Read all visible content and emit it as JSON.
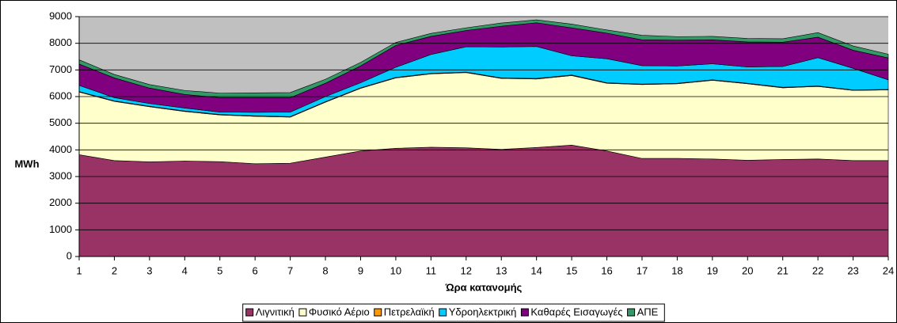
{
  "chart_data": {
    "type": "stacked-area",
    "y_label": "MWh",
    "x_label": "Ώρα κατανομής",
    "x": [
      1,
      2,
      3,
      4,
      5,
      6,
      7,
      8,
      9,
      10,
      11,
      12,
      13,
      14,
      15,
      16,
      17,
      18,
      19,
      20,
      21,
      22,
      23,
      24
    ],
    "xlim": [
      1,
      24
    ],
    "xticks": [
      1,
      2,
      3,
      4,
      5,
      6,
      7,
      8,
      9,
      10,
      11,
      12,
      13,
      14,
      15,
      16,
      17,
      18,
      19,
      20,
      21,
      22,
      23,
      24
    ],
    "ylim": [
      0,
      9000
    ],
    "yticks": [
      0,
      1000,
      2000,
      3000,
      4000,
      5000,
      6000,
      7000,
      8000,
      9000
    ],
    "grid": true,
    "legend": "bottom",
    "series": [
      {
        "name": "Λιγνιτική",
        "color": "#993366",
        "values": [
          3820,
          3600,
          3550,
          3580,
          3560,
          3480,
          3500,
          3730,
          3960,
          4060,
          4100,
          4080,
          4020,
          4090,
          4180,
          3960,
          3680,
          3680,
          3660,
          3610,
          3640,
          3660,
          3600,
          3600
        ]
      },
      {
        "name": "Φυσικό Αέριο",
        "color": "#FFFFCC",
        "values": [
          2350,
          2220,
          2070,
          1860,
          1750,
          1780,
          1730,
          2060,
          2350,
          2640,
          2750,
          2820,
          2660,
          2570,
          2610,
          2540,
          2770,
          2800,
          2950,
          2870,
          2690,
          2720,
          2630,
          2650
        ]
      },
      {
        "name": "Πετρελαϊκή",
        "color": "#FF9900",
        "values": [
          20,
          20,
          20,
          20,
          20,
          20,
          20,
          20,
          20,
          20,
          20,
          20,
          20,
          20,
          20,
          20,
          20,
          20,
          20,
          20,
          20,
          20,
          20,
          20
        ]
      },
      {
        "name": "Υδροηλεκτρική",
        "color": "#00CCFF",
        "values": [
          230,
          120,
          100,
          110,
          90,
          130,
          170,
          190,
          190,
          380,
          710,
          950,
          1160,
          1200,
          720,
          900,
          690,
          650,
          600,
          610,
          780,
          1060,
          810,
          360
        ]
      },
      {
        "name": "Καθαρές Εισαγωγές",
        "color": "#800080",
        "values": [
          800,
          740,
          580,
          510,
          540,
          550,
          540,
          500,
          630,
          820,
          680,
          610,
          780,
          890,
          1050,
          960,
          970,
          970,
          900,
          940,
          910,
          770,
          680,
          820
        ]
      },
      {
        "name": "ΑΠΕ",
        "color": "#339966",
        "values": [
          160,
          130,
          130,
          150,
          170,
          180,
          190,
          150,
          130,
          110,
          110,
          100,
          120,
          110,
          140,
          120,
          170,
          130,
          130,
          130,
          130,
          170,
          160,
          140
        ]
      }
    ]
  }
}
